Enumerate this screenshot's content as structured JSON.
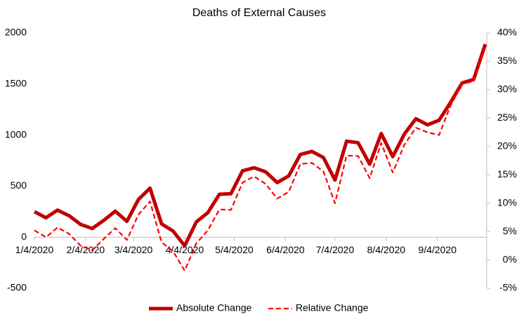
{
  "chart_data": {
    "type": "line",
    "title": "Deaths of External Causes",
    "x": [
      "1/4/2020",
      "1/11/2020",
      "1/18/2020",
      "1/25/2020",
      "2/1/2020",
      "2/8/2020",
      "2/15/2020",
      "2/22/2020",
      "2/29/2020",
      "3/7/2020",
      "3/14/2020",
      "3/21/2020",
      "3/28/2020",
      "4/4/2020",
      "4/11/2020",
      "4/18/2020",
      "4/25/2020",
      "5/2/2020",
      "5/9/2020",
      "5/16/2020",
      "5/23/2020",
      "5/30/2020",
      "6/6/2020",
      "6/13/2020",
      "6/20/2020",
      "6/27/2020",
      "7/4/2020",
      "7/11/2020",
      "7/18/2020",
      "7/25/2020",
      "8/1/2020",
      "8/8/2020",
      "8/15/2020",
      "8/22/2020",
      "8/29/2020",
      "9/5/2020",
      "9/12/2020",
      "9/19/2020",
      "9/26/2020",
      "10/3/2020"
    ],
    "series": [
      {
        "name": "Absolute Change",
        "color": "#c00000",
        "values": [
          250,
          190,
          265,
          210,
          125,
          85,
          165,
          255,
          155,
          370,
          480,
          130,
          60,
          -85,
          150,
          240,
          420,
          425,
          650,
          680,
          640,
          535,
          600,
          810,
          840,
          780,
          560,
          940,
          925,
          715,
          1015,
          790,
          1010,
          1160,
          1100,
          1145,
          1320,
          1510,
          1545,
          1890
        ]
      },
      {
        "name": "Relative Change",
        "color": "#ff0000",
        "axis": "y2",
        "values": [
          5.2,
          4.0,
          5.7,
          4.6,
          2.5,
          1.7,
          3.7,
          5.6,
          3.5,
          8.0,
          10.3,
          3.1,
          1.5,
          -1.9,
          2.9,
          5.2,
          8.9,
          8.8,
          13.6,
          14.7,
          13.4,
          10.8,
          12.0,
          16.9,
          17.1,
          15.6,
          10.0,
          18.4,
          18.3,
          14.4,
          20.6,
          15.4,
          20.3,
          23.3,
          22.5,
          22.0,
          27.2,
          31.0,
          31.5,
          37.4
        ]
      }
    ],
    "xlim": [
      "1/4/2020",
      "10/3/2020"
    ],
    "xticks": [
      "1/4/2020",
      "2/4/2020",
      "3/4/2020",
      "4/4/2020",
      "5/4/2020",
      "6/4/2020",
      "7/4/2020",
      "8/4/2020",
      "9/4/2020"
    ],
    "ylim": [
      -500,
      2000
    ],
    "yticks": [
      -500,
      0,
      500,
      1000,
      1500,
      2000
    ],
    "y2lim": [
      -5,
      40
    ],
    "y2ticks": [
      {
        "value": -5,
        "label": "-5%"
      },
      {
        "value": 0,
        "label": "0%"
      },
      {
        "value": 5,
        "label": "5%"
      },
      {
        "value": 10,
        "label": "10%"
      },
      {
        "value": 15,
        "label": "15%"
      },
      {
        "value": 20,
        "label": "20%"
      },
      {
        "value": 25,
        "label": "25%"
      },
      {
        "value": 30,
        "label": "30%"
      },
      {
        "value": 35,
        "label": "35%"
      },
      {
        "value": 40,
        "label": "40%"
      }
    ],
    "grid": false,
    "legend": "bottom"
  }
}
